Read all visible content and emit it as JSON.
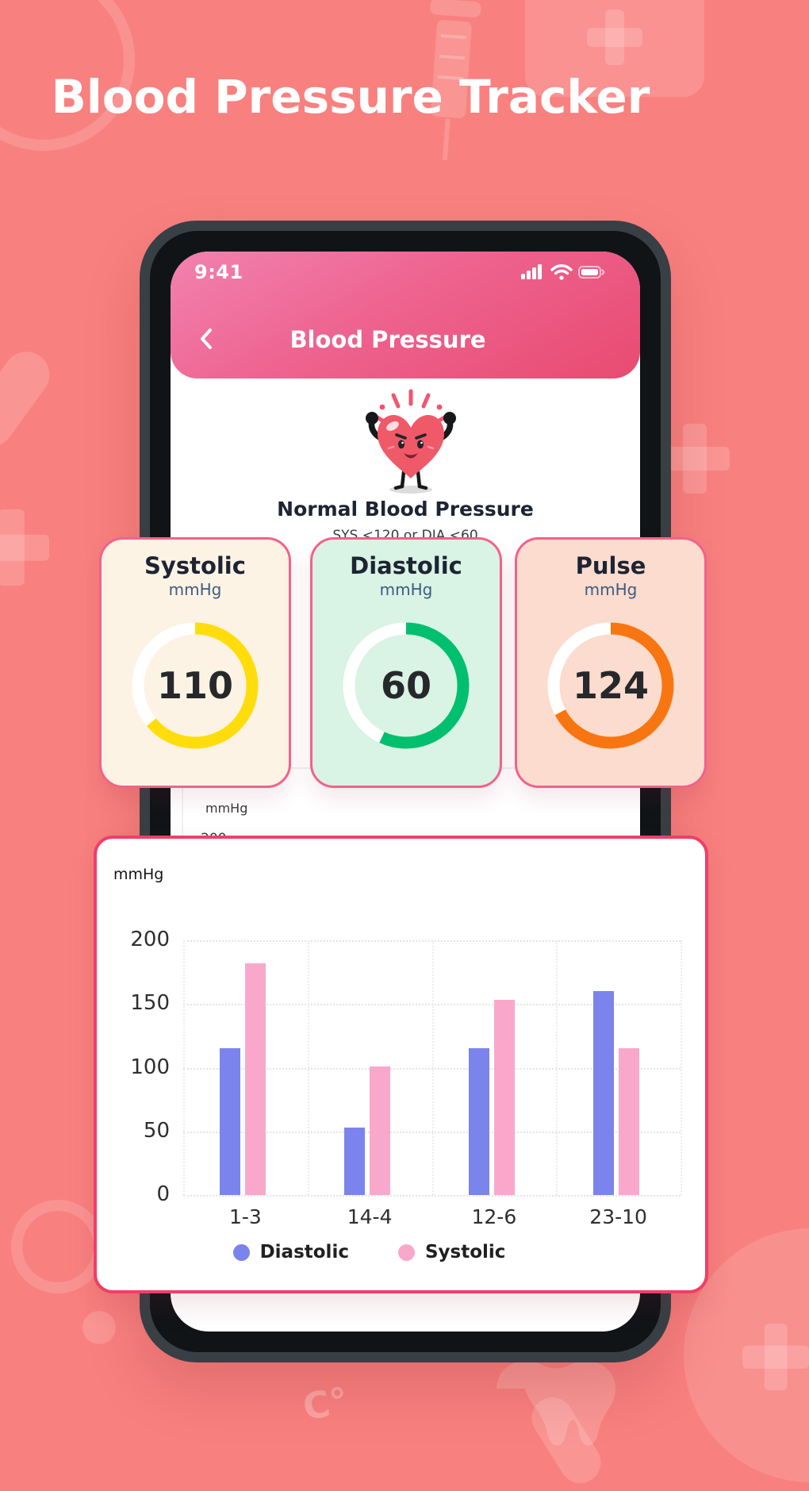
{
  "page": {
    "title": "Blood Pressure Tracker"
  },
  "phone": {
    "status": {
      "time": "9:41"
    },
    "nav": {
      "title": "Blood Pressure"
    },
    "hero": {
      "heading": "Normal Blood Pressure",
      "subheading": "SYS <120 or DIA <60"
    },
    "peek": {
      "unit": "mmHg",
      "tick": "200"
    }
  },
  "stat_cards": [
    {
      "label": "Systolic",
      "unit": "mmHg",
      "value": "110",
      "ring_color": "#ffdd0d",
      "bg": "#fdf3e4",
      "sweep_deg": 230
    },
    {
      "label": "Diastolic",
      "unit": "mmHg",
      "value": "60",
      "ring_color": "#00bf6e",
      "bg": "#d9f3e4",
      "sweep_deg": 205
    },
    {
      "label": "Pulse",
      "unit": "mmHg",
      "value": "124",
      "ring_color": "#f87611",
      "bg": "#fcdcce",
      "sweep_deg": 242
    }
  ],
  "chart_data": {
    "type": "bar",
    "unit_label": "mmHg",
    "categories": [
      "1-3",
      "14-4",
      "12-6",
      "23-10"
    ],
    "series": [
      {
        "name": "Diastolic",
        "color": "#7b84ec",
        "values": [
          115,
          53,
          115,
          160
        ]
      },
      {
        "name": "Systolic",
        "color": "#f9a8cc",
        "values": [
          182,
          101,
          153,
          115
        ]
      }
    ],
    "y_ticks": [
      0,
      50,
      100,
      150,
      200
    ],
    "ylim": [
      0,
      200
    ],
    "grid": "dotted",
    "legend_position": "bottom"
  },
  "colors": {
    "background": "#f8817f",
    "header_gradient_start": "#f282ae",
    "header_gradient_end": "#e84b70",
    "stat_card_border": "#f2628b",
    "chart_card_border": "#ef3f68",
    "diastolic_bar": "#7b84ec",
    "systolic_bar": "#f9a8cc"
  },
  "decor_text": {
    "celsius": "C°"
  }
}
